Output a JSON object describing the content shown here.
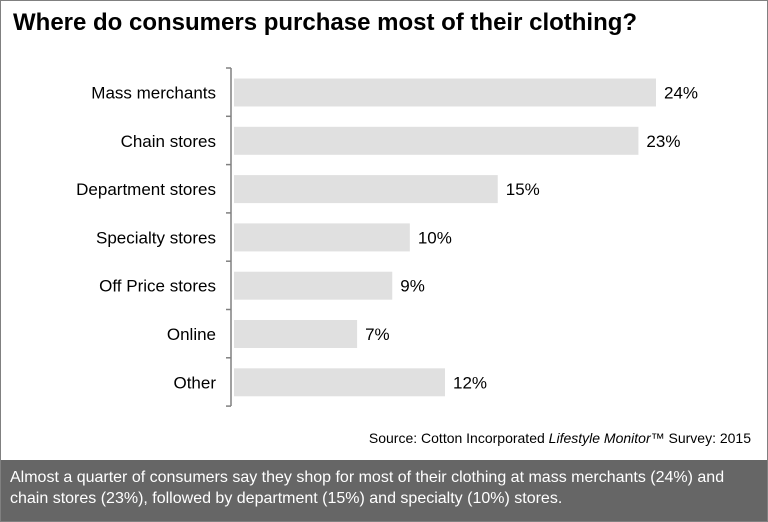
{
  "chart_data": {
    "type": "bar",
    "orientation": "horizontal",
    "title": "Where do consumers purchase most of their clothing?",
    "categories": [
      "Mass merchants",
      "Chain stores",
      "Department stores",
      "Specialty stores",
      "Off Price stores",
      "Online",
      "Other"
    ],
    "values": [
      24,
      23,
      15,
      10,
      9,
      7,
      12
    ],
    "value_labels": [
      "24%",
      "23%",
      "15%",
      "10%",
      "9%",
      "7%",
      "12%"
    ],
    "xlim": [
      0,
      25
    ],
    "grid": false,
    "legend": "none",
    "bar_color": "#e0e0e0",
    "axis_color": "#808080"
  },
  "source": {
    "prefix": "Source: Cotton Incorporated ",
    "publication": "Lifestyle Monitor",
    "suffix": "™ Survey: 2015"
  },
  "footer": {
    "text": "Almost a quarter of consumers say they shop for most of their clothing at mass merchants (24%) and chain stores (23%), followed by department (15%) and specialty (10%) stores.",
    "background": "#666666"
  }
}
